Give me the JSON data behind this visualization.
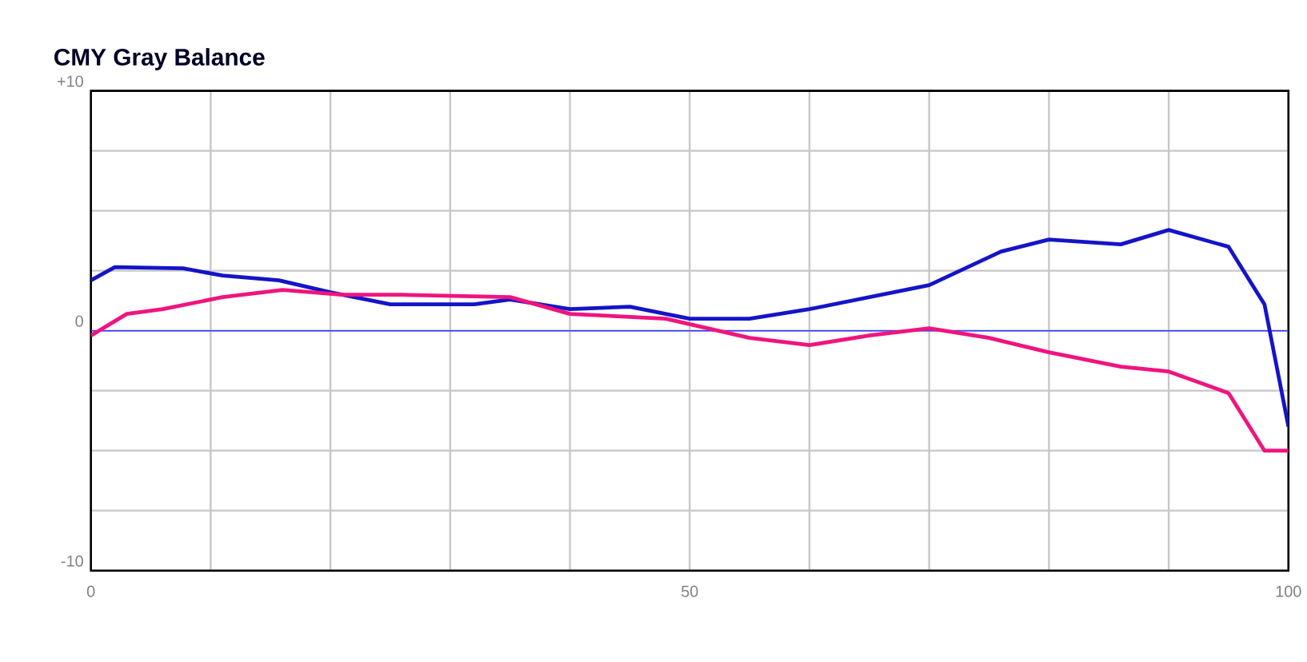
{
  "chart_data": {
    "type": "line",
    "title": "CMY Gray Balance",
    "x": [
      0,
      2,
      7.7,
      11,
      15.7,
      20,
      25,
      32,
      35,
      40,
      45,
      50,
      55,
      60,
      70,
      76,
      80,
      86,
      90,
      95,
      98,
      100
    ],
    "series": [
      {
        "color": "#1414c8",
        "values": [
          2.1,
          2.65,
          2.6,
          2.3,
          2.1,
          1.6,
          1.1,
          1.1,
          1.3,
          0.9,
          1.0,
          0.5,
          0.5,
          0.9,
          1.9,
          3.3,
          3.8,
          3.6,
          4.2,
          3.5,
          1.1,
          -4.0
        ]
      },
      {
        "color": "#f0147f",
        "x": [
          0,
          3,
          6,
          11,
          16,
          21,
          26,
          35,
          40,
          48,
          55,
          60,
          65,
          70,
          75,
          80,
          86,
          90,
          95,
          98,
          100
        ],
        "values": [
          -0.2,
          0.7,
          0.9,
          1.4,
          1.7,
          1.5,
          1.5,
          1.4,
          0.7,
          0.5,
          -0.3,
          -0.6,
          -0.2,
          0.1,
          -0.3,
          -0.9,
          -1.5,
          -1.7,
          -2.6,
          -5.0,
          -5.0
        ]
      }
    ],
    "xlim": [
      0,
      100
    ],
    "ylim": [
      -10,
      10
    ],
    "xticks": [
      0,
      {
        "value": 10,
        "label": null
      },
      {
        "value": 20,
        "label": null
      },
      {
        "value": 30,
        "label": null
      },
      {
        "value": 40,
        "label": null
      },
      50,
      {
        "value": 60,
        "label": null
      },
      {
        "value": 70,
        "label": null
      },
      {
        "value": 80,
        "label": null
      },
      {
        "value": 90,
        "label": null
      },
      100
    ],
    "yticks": [
      -10,
      {
        "value": -7.5,
        "label": null
      },
      {
        "value": -5,
        "label": null
      },
      {
        "value": -2.5,
        "label": null
      },
      0,
      {
        "value": 2.5,
        "label": null
      },
      {
        "value": 5,
        "label": null
      },
      {
        "value": 7.5,
        "label": null
      },
      {
        "value": 10,
        "label": "+10"
      }
    ],
    "ref_lines": [
      {
        "axis": "y",
        "value": 0,
        "color": "#3c3cff"
      }
    ],
    "grid": true,
    "marker": "none",
    "line_style": "solid"
  }
}
